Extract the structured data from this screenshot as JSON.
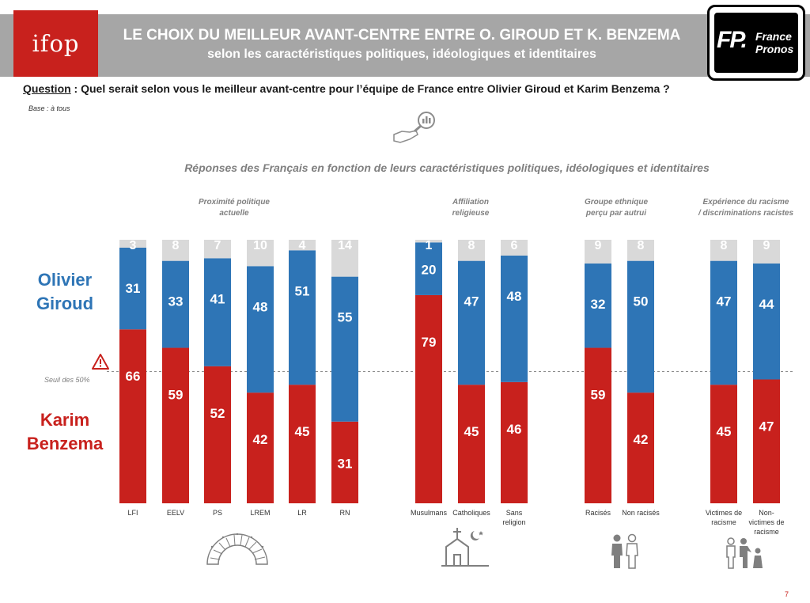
{
  "header": {
    "ifop_logo": "ifop",
    "title": "LE CHOIX DU MEILLEUR AVANT-CENTRE ENTRE O. GIROUD ET K. BENZEMA",
    "subtitle": "selon les caractéristiques politiques, idéologiques et identitaires",
    "partner_logo_mark": "FP.",
    "partner_logo_line1": "France",
    "partner_logo_line2": "Pronos"
  },
  "question": {
    "label": "Question",
    "text": " : Quel serait selon vous le meilleur avant-centre pour l’équipe de France entre Olivier Giroud et Karim Benzema ?"
  },
  "base": "Base : à tous",
  "subtitle_chart": "Réponses des Français en fonction de leurs caractéristiques politiques, idéologiques et identitaires",
  "groups": [
    {
      "title_line1": "Proximité politique",
      "title_line2": "actuelle"
    },
    {
      "title_line1": "Affiliation",
      "title_line2": "religieuse"
    },
    {
      "title_line1": "Groupe ethnique",
      "title_line2": "perçu par autrui"
    },
    {
      "title_line1": "Expérience du racisme",
      "title_line2": "/ discriminations racistes"
    }
  ],
  "legend": {
    "giroud_line1": "Olivier",
    "giroud_line2": "Giroud",
    "benzema_line1": "Karim",
    "benzema_line2": "Benzema"
  },
  "threshold_label": "Seuil des 50%",
  "page_number": "7",
  "colors": {
    "benzema": "#c8211d",
    "giroud": "#2e75b6",
    "nsp": "#d9d9d9",
    "ifop_red": "#c8211d",
    "header_gray": "#a6a6a6"
  },
  "icons": [
    "search-chart-icon",
    "warning-icon",
    "parliament-icon",
    "church-mosque-icon",
    "people-icon",
    "discrimination-icon"
  ],
  "chart_data": {
    "type": "bar",
    "stacked": true,
    "categories": [
      "LFI",
      "EELV",
      "PS",
      "LREM",
      "LR",
      "RN",
      "Musulmans",
      "Catholiques",
      "Sans religion",
      "Racisés",
      "Non racisés",
      "Victimes de racisme",
      "Non-victimes de racisme"
    ],
    "category_lines": [
      [
        "LFI"
      ],
      [
        "EELV"
      ],
      [
        "PS"
      ],
      [
        "LREM"
      ],
      [
        "LR"
      ],
      [
        "RN"
      ],
      [
        "Musulmans"
      ],
      [
        "Catholiques"
      ],
      [
        "Sans",
        "religion"
      ],
      [
        "Racisés"
      ],
      [
        "Non racisés"
      ],
      [
        "Victimes de",
        "racisme"
      ],
      [
        "Non-",
        "victimes de",
        "racisme"
      ]
    ],
    "series": [
      {
        "name": "Karim Benzema",
        "values": [
          66,
          59,
          52,
          42,
          45,
          31,
          79,
          45,
          46,
          59,
          42,
          45,
          47
        ]
      },
      {
        "name": "Olivier Giroud",
        "values": [
          31,
          33,
          41,
          48,
          51,
          55,
          20,
          47,
          48,
          32,
          50,
          47,
          44
        ]
      },
      {
        "values": [
          3,
          8,
          7,
          10,
          4,
          14,
          1,
          8,
          6,
          9,
          8,
          8,
          9
        ]
      }
    ],
    "ylim": [
      0,
      100
    ],
    "threshold": 50,
    "grid": false
  }
}
